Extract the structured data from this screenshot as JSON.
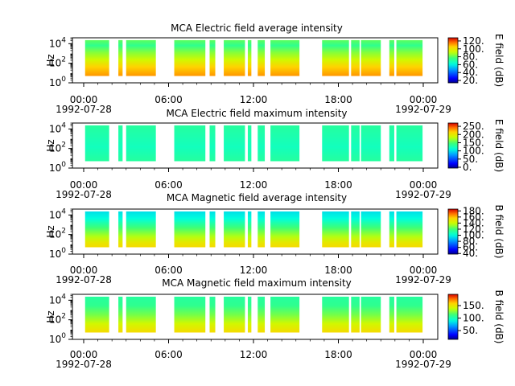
{
  "chart_data": [
    {
      "type": "heatmap",
      "title": "MCA  Electric field average intensity",
      "ylabel": "Hz",
      "yticks": [
        {
          "base": "10",
          "exp": "0"
        },
        {
          "base": "10",
          "exp": "2"
        },
        {
          "base": "10",
          "exp": "4"
        }
      ],
      "ylim": [
        1,
        40000
      ],
      "yscale": "log",
      "xlim": [
        "1992-07-28 00:00",
        "1992-07-29 00:00"
      ],
      "xticks": [
        "00:00",
        "06:00",
        "12:00",
        "18:00",
        "00:00"
      ],
      "date_start": "1992-07-28",
      "date_end": "1992-07-29",
      "colorbar_label": "E field (dB)",
      "colorbar_ticks": [
        "20.",
        "40.",
        "60.",
        "80.",
        "100.",
        "120."
      ],
      "colorbar_range": [
        14,
        128
      ],
      "profile": "e_avg"
    },
    {
      "type": "heatmap",
      "title": "MCA  Electric field maximum intensity",
      "ylabel": "Hz",
      "yticks": [
        {
          "base": "10",
          "exp": "0"
        },
        {
          "base": "10",
          "exp": "2"
        },
        {
          "base": "10",
          "exp": "4"
        }
      ],
      "ylim": [
        1,
        40000
      ],
      "yscale": "log",
      "xlim": [
        "1992-07-28 00:00",
        "1992-07-29 00:00"
      ],
      "xticks": [
        "00:00",
        "06:00",
        "12:00",
        "18:00",
        "00:00"
      ],
      "date_start": "1992-07-28",
      "date_end": "1992-07-29",
      "colorbar_label": "E field (dB)",
      "colorbar_ticks": [
        "0.",
        "50.",
        "100.",
        "150.",
        "200.",
        "250."
      ],
      "colorbar_range": [
        -5,
        270
      ],
      "profile": "e_max"
    },
    {
      "type": "heatmap",
      "title": "MCA  Magnetic field average intensity",
      "ylabel": "Hz",
      "yticks": [
        {
          "base": "10",
          "exp": "0"
        },
        {
          "base": "10",
          "exp": "2"
        },
        {
          "base": "10",
          "exp": "4"
        }
      ],
      "ylim": [
        1,
        40000
      ],
      "yscale": "log",
      "xlim": [
        "1992-07-28 00:00",
        "1992-07-29 00:00"
      ],
      "xticks": [
        "00:00",
        "06:00",
        "12:00",
        "18:00",
        "00:00"
      ],
      "date_start": "1992-07-28",
      "date_end": "1992-07-29",
      "colorbar_label": "B field (dB)",
      "colorbar_ticks": [
        "40.",
        "60.",
        "80.",
        "100.",
        "120.",
        "140.",
        "160.",
        "180."
      ],
      "colorbar_range": [
        38,
        186
      ],
      "profile": "b_avg"
    },
    {
      "type": "heatmap",
      "title": "MCA  Magnetic field maximum intensity",
      "ylabel": "Hz",
      "yticks": [
        {
          "base": "10",
          "exp": "0"
        },
        {
          "base": "10",
          "exp": "2"
        },
        {
          "base": "10",
          "exp": "4"
        }
      ],
      "ylim": [
        1,
        40000
      ],
      "yscale": "log",
      "xlim": [
        "1992-07-28 00:00",
        "1992-07-29 00:00"
      ],
      "xticks": [
        "00:00",
        "06:00",
        "12:00",
        "18:00",
        "00:00"
      ],
      "date_start": "1992-07-28",
      "date_end": "1992-07-29",
      "colorbar_label": "B field (dB)",
      "colorbar_ticks": [
        "50.",
        "100.",
        "150."
      ],
      "colorbar_range": [
        15,
        195
      ],
      "profile": "b_max"
    }
  ],
  "data_coverage_hours": [
    [
      0.1,
      1.8
    ],
    [
      2.45,
      2.75
    ],
    [
      3.0,
      5.1
    ],
    [
      6.4,
      8.6
    ],
    [
      8.9,
      9.3
    ],
    [
      9.9,
      11.4
    ],
    [
      11.6,
      11.85
    ],
    [
      12.3,
      12.8
    ],
    [
      13.2,
      15.25
    ],
    [
      16.85,
      18.75
    ],
    [
      18.9,
      19.5
    ],
    [
      19.6,
      21.0
    ],
    [
      21.6,
      21.95
    ],
    [
      22.1,
      23.95
    ]
  ],
  "frequency_band_hz": [
    5,
    23000
  ]
}
